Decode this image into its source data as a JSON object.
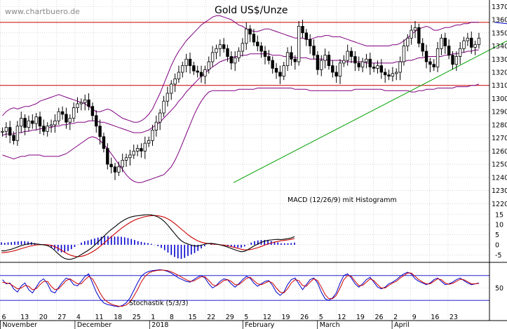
{
  "watermark": "www.chartbuero.de",
  "chart_data": {
    "type": "candlestick",
    "title": "Gold US$/Unze",
    "price_axis": {
      "ylim": [
        1210,
        1375
      ],
      "ticks": [
        1220,
        1230,
        1240,
        1250,
        1260,
        1270,
        1280,
        1290,
        1300,
        1310,
        1320,
        1330,
        1340,
        1350,
        1360,
        1370
      ]
    },
    "x_ticks": [
      "6",
      "13",
      "20",
      "27",
      "4",
      "11",
      "18",
      "25",
      "1",
      "8",
      "15",
      "22",
      "29",
      "5",
      "12",
      "19",
      "26",
      "5",
      "12",
      "19",
      "26",
      "2",
      "9",
      "16",
      "23"
    ],
    "month_labels": [
      {
        "label": "November",
        "tick": 0
      },
      {
        "label": "December",
        "tick": 4
      },
      {
        "label": "2018",
        "tick": 8
      },
      {
        "label": "February",
        "tick": 13
      },
      {
        "label": "March",
        "tick": 17
      },
      {
        "label": "April",
        "tick": 21
      }
    ],
    "horizontal_levels": [
      1358,
      1310
    ],
    "trendlines": [
      {
        "color": "#0000cc",
        "from": [
          1358.0,
          26.5
        ],
        "to": [
          1326.0,
          47.5
        ]
      },
      {
        "color": "#0000cc",
        "from": [
          1331.0,
          27.5
        ],
        "to": [
          1292.0,
          56.5
        ]
      },
      {
        "color": "#00a000",
        "from": [
          1236.0,
          12.5
        ],
        "to": [
          1350.0,
          28.0
        ]
      }
    ],
    "close": [
      1275,
      1278,
      1272,
      1268,
      1279,
      1285,
      1278,
      1283,
      1281,
      1286,
      1279,
      1275,
      1279,
      1280,
      1283,
      1290,
      1288,
      1282,
      1285,
      1293,
      1296,
      1297,
      1299,
      1294,
      1287,
      1279,
      1271,
      1262,
      1250,
      1248,
      1244,
      1248,
      1253,
      1255,
      1257,
      1260,
      1262,
      1260,
      1266,
      1268,
      1276,
      1282,
      1289,
      1298,
      1304,
      1311,
      1315,
      1320,
      1325,
      1330,
      1325,
      1321,
      1320,
      1317,
      1322,
      1328,
      1335,
      1338,
      1341,
      1338,
      1332,
      1327,
      1331,
      1336,
      1342,
      1353,
      1349,
      1343,
      1340,
      1336,
      1332,
      1329,
      1323,
      1320,
      1317,
      1325,
      1335,
      1330,
      1328,
      1355,
      1350,
      1345,
      1340,
      1333,
      1322,
      1329,
      1333,
      1325,
      1320,
      1317,
      1327,
      1329,
      1336,
      1332,
      1327,
      1324,
      1328,
      1330,
      1324,
      1323,
      1325,
      1320,
      1318,
      1317,
      1319,
      1320,
      1328,
      1340,
      1346,
      1352,
      1354,
      1342,
      1336,
      1328,
      1326,
      1324,
      1338,
      1346,
      1340,
      1333,
      1326,
      1332,
      1338,
      1344,
      1346,
      1339,
      1341,
      1346
    ],
    "open": [
      1275,
      1275,
      1278,
      1272,
      1268,
      1279,
      1285,
      1278,
      1283,
      1281,
      1286,
      1279,
      1275,
      1279,
      1280,
      1283,
      1290,
      1288,
      1282,
      1285,
      1293,
      1296,
      1297,
      1299,
      1294,
      1287,
      1279,
      1271,
      1262,
      1250,
      1248,
      1244,
      1248,
      1253,
      1255,
      1257,
      1260,
      1262,
      1260,
      1266,
      1268,
      1276,
      1282,
      1289,
      1298,
      1304,
      1311,
      1315,
      1320,
      1325,
      1330,
      1325,
      1321,
      1320,
      1317,
      1322,
      1328,
      1335,
      1338,
      1341,
      1338,
      1332,
      1327,
      1331,
      1336,
      1342,
      1353,
      1349,
      1343,
      1340,
      1336,
      1332,
      1329,
      1323,
      1320,
      1317,
      1325,
      1335,
      1330,
      1328,
      1355,
      1350,
      1345,
      1340,
      1333,
      1322,
      1329,
      1333,
      1325,
      1320,
      1317,
      1327,
      1329,
      1336,
      1332,
      1327,
      1324,
      1328,
      1330,
      1324,
      1323,
      1325,
      1320,
      1318,
      1317,
      1319,
      1320,
      1328,
      1340,
      1346,
      1352,
      1354,
      1342,
      1336,
      1328,
      1326,
      1324,
      1338,
      1346,
      1340,
      1333,
      1326,
      1332,
      1338,
      1344,
      1346,
      1339,
      1341
    ],
    "bollinger": {
      "upper": [
        1287,
        1290,
        1292,
        1293,
        1292,
        1293,
        1294,
        1294,
        1295,
        1296,
        1298,
        1299,
        1300,
        1301,
        1302,
        1303,
        1302,
        1301,
        1300,
        1299,
        1298,
        1297,
        1296,
        1294,
        1292,
        1290,
        1290,
        1291,
        1292,
        1291,
        1289,
        1287,
        1285,
        1284,
        1283,
        1282,
        1282,
        1283,
        1285,
        1288,
        1292,
        1298,
        1304,
        1311,
        1318,
        1325,
        1331,
        1336,
        1340,
        1344,
        1347,
        1350,
        1353,
        1356,
        1358,
        1360,
        1362,
        1363,
        1363,
        1362,
        1361,
        1360,
        1358,
        1356,
        1355,
        1353,
        1352,
        1351,
        1351,
        1352,
        1353,
        1353,
        1352,
        1351,
        1350,
        1349,
        1348,
        1347,
        1346,
        1346,
        1346,
        1345,
        1345,
        1346,
        1347,
        1347,
        1348,
        1348,
        1347,
        1347,
        1347,
        1346,
        1345,
        1344,
        1343,
        1342,
        1341,
        1340,
        1340,
        1340,
        1340,
        1340,
        1340,
        1340,
        1341,
        1341,
        1342,
        1344,
        1346,
        1349,
        1351,
        1353,
        1354,
        1355,
        1354,
        1352,
        1352,
        1353,
        1354,
        1354,
        1355,
        1356,
        1356,
        1357,
        1357,
        1358,
        1358,
        1358
      ],
      "middle": [
        1272,
        1273,
        1273,
        1273,
        1274,
        1274,
        1275,
        1275,
        1276,
        1276,
        1277,
        1277,
        1278,
        1278,
        1279,
        1279,
        1280,
        1280,
        1281,
        1281,
        1282,
        1282,
        1282,
        1283,
        1283,
        1283,
        1282,
        1282,
        1281,
        1280,
        1279,
        1278,
        1277,
        1276,
        1275,
        1274,
        1274,
        1274,
        1275,
        1276,
        1278,
        1280,
        1282,
        1285,
        1288,
        1291,
        1294,
        1298,
        1301,
        1305,
        1308,
        1311,
        1314,
        1317,
        1319,
        1322,
        1324,
        1326,
        1328,
        1329,
        1330,
        1331,
        1332,
        1332,
        1333,
        1333,
        1334,
        1334,
        1334,
        1334,
        1334,
        1334,
        1333,
        1333,
        1333,
        1332,
        1332,
        1332,
        1331,
        1331,
        1331,
        1331,
        1330,
        1330,
        1330,
        1330,
        1330,
        1329,
        1329,
        1329,
        1329,
        1328,
        1328,
        1328,
        1328,
        1328,
        1328,
        1327,
        1327,
        1327,
        1327,
        1327,
        1327,
        1327,
        1327,
        1328,
        1328,
        1328,
        1329,
        1329,
        1330,
        1331,
        1331,
        1332,
        1332,
        1332,
        1332,
        1332,
        1333,
        1333,
        1334,
        1334,
        1335,
        1335,
        1336,
        1336,
        1337,
        1337
      ],
      "lower": [
        1257,
        1256,
        1255,
        1254,
        1255,
        1256,
        1256,
        1257,
        1257,
        1257,
        1257,
        1256,
        1256,
        1256,
        1256,
        1256,
        1257,
        1258,
        1260,
        1262,
        1264,
        1266,
        1268,
        1270,
        1271,
        1270,
        1268,
        1265,
        1262,
        1258,
        1254,
        1250,
        1246,
        1242,
        1239,
        1237,
        1236,
        1236,
        1237,
        1238,
        1239,
        1240,
        1241,
        1242,
        1245,
        1248,
        1253,
        1259,
        1266,
        1273,
        1280,
        1287,
        1293,
        1298,
        1302,
        1305,
        1306,
        1306,
        1306,
        1306,
        1306,
        1306,
        1306,
        1307,
        1307,
        1307,
        1307,
        1307,
        1308,
        1308,
        1308,
        1308,
        1308,
        1308,
        1308,
        1308,
        1308,
        1308,
        1307,
        1307,
        1307,
        1307,
        1306,
        1306,
        1306,
        1306,
        1306,
        1306,
        1306,
        1306,
        1306,
        1306,
        1306,
        1306,
        1307,
        1307,
        1307,
        1307,
        1307,
        1307,
        1307,
        1307,
        1306,
        1306,
        1306,
        1306,
        1306,
        1306,
        1306,
        1305,
        1305,
        1306,
        1306,
        1307,
        1307,
        1307,
        1308,
        1308,
        1308,
        1308,
        1308,
        1309,
        1309,
        1309,
        1309,
        1310,
        1310,
        1311
      ]
    },
    "macd": {
      "label": "MACD (12/26/9) mit Histogramm",
      "ticks": [
        15,
        10,
        5,
        0,
        -5
      ],
      "ylim": [
        -8,
        17
      ],
      "macd": [
        -3,
        -3,
        -2.6,
        -2.2,
        -1.6,
        -1,
        -0.4,
        0.1,
        0.4,
        0.6,
        0.5,
        0.3,
        0.1,
        -0.1,
        -0.5,
        -1.4,
        -2.8,
        -4.4,
        -5.8,
        -6.8,
        -7.2,
        -7.1,
        -6.6,
        -5.8,
        -4.8,
        -3.8,
        -2.8,
        -1.6,
        -0.2,
        1.4,
        3,
        4.6,
        6.2,
        7.6,
        8.8,
        10.2,
        11.4,
        12.4,
        13.2,
        13.8,
        14.2,
        14.4,
        14.6,
        14.8,
        14.9,
        14.8,
        14.4,
        13.8,
        12.8,
        11.4,
        9.6,
        7.6,
        5.6,
        3.6,
        2,
        1,
        0.4,
        -0.2,
        -0.6,
        -0.6,
        -0.2,
        0.3,
        0.6,
        0.7,
        0.5,
        0.2,
        -0.2,
        -0.6,
        -1.2,
        -1.8,
        -2.4,
        -3,
        -3.4,
        -3.2,
        -2.4,
        -1.4,
        -0.4,
        0.4,
        1.2,
        1.8,
        2.2,
        2.4,
        2.6,
        2.7,
        2.6,
        2.8,
        3,
        3.4,
        4
      ],
      "signal": [
        -4,
        -3.8,
        -3.6,
        -3.3,
        -2.9,
        -2.4,
        -1.9,
        -1.4,
        -0.9,
        -0.5,
        -0.2,
        0,
        0.1,
        0.1,
        0,
        -0.3,
        -0.9,
        -1.7,
        -2.7,
        -3.7,
        -4.6,
        -5.3,
        -5.7,
        -5.9,
        -5.7,
        -5.3,
        -4.6,
        -3.8,
        -2.8,
        -1.6,
        -0.3,
        1.1,
        2.6,
        4,
        5.4,
        6.8,
        8.1,
        9.3,
        10.4,
        11.4,
        12.2,
        12.9,
        13.4,
        13.9,
        14.2,
        14.4,
        14.5,
        14.4,
        14.1,
        13.6,
        12.8,
        11.8,
        10.6,
        9.2,
        7.8,
        6.4,
        5,
        3.8,
        2.8,
        1.9,
        1.3,
        0.9,
        0.6,
        0.4,
        0.3,
        0.2,
        0,
        -0.2,
        -0.5,
        -0.9,
        -1.3,
        -1.8,
        -2.2,
        -2.5,
        -2.5,
        -2.3,
        -1.9,
        -1.4,
        -0.8,
        -0.2,
        0.4,
        0.9,
        1.3,
        1.7,
        2,
        2.2,
        2.4,
        2.7,
        3.1
      ]
    },
    "stochastic": {
      "label": "Stochastik (5/3/3)",
      "ticks": [
        50
      ],
      "levels": [
        80,
        20
      ],
      "k": [
        70,
        60,
        62,
        48,
        40,
        55,
        62,
        46,
        38,
        52,
        66,
        72,
        60,
        42,
        38,
        52,
        64,
        74,
        70,
        58,
        55,
        66,
        78,
        84,
        62,
        40,
        24,
        14,
        10,
        8,
        6,
        5,
        8,
        14,
        26,
        44,
        62,
        78,
        86,
        90,
        92,
        93,
        94,
        93,
        90,
        86,
        80,
        74,
        70,
        66,
        64,
        70,
        76,
        80,
        74,
        60,
        50,
        56,
        66,
        72,
        70,
        60,
        52,
        60,
        70,
        78,
        74,
        62,
        54,
        60,
        66,
        68,
        56,
        40,
        32,
        40,
        58,
        70,
        74,
        60,
        46,
        58,
        70,
        74,
        62,
        40,
        24,
        20,
        26,
        38,
        62,
        80,
        84,
        74,
        60,
        52,
        60,
        70,
        76,
        64,
        52,
        48,
        52,
        60,
        64,
        70,
        78,
        84,
        88,
        84,
        72,
        66,
        62,
        58,
        62,
        70,
        74,
        66,
        58,
        60,
        64,
        70,
        74,
        68,
        62,
        58,
        60,
        62
      ],
      "d": [
        64,
        62,
        60,
        54,
        48,
        50,
        56,
        54,
        46,
        48,
        58,
        66,
        66,
        54,
        46,
        48,
        58,
        68,
        72,
        66,
        60,
        60,
        70,
        78,
        72,
        56,
        38,
        24,
        16,
        11,
        8,
        6,
        6,
        9,
        16,
        30,
        46,
        64,
        78,
        86,
        90,
        92,
        93,
        93,
        92,
        89,
        85,
        80,
        75,
        70,
        66,
        67,
        72,
        77,
        77,
        68,
        58,
        55,
        61,
        68,
        70,
        66,
        58,
        58,
        65,
        73,
        76,
        68,
        60,
        58,
        62,
        66,
        62,
        50,
        40,
        38,
        48,
        62,
        70,
        68,
        56,
        54,
        64,
        72,
        68,
        52,
        34,
        24,
        24,
        32,
        50,
        70,
        80,
        78,
        66,
        56,
        56,
        64,
        72,
        68,
        58,
        50,
        50,
        56,
        62,
        66,
        74,
        80,
        86,
        86,
        78,
        70,
        64,
        60,
        60,
        66,
        72,
        70,
        62,
        59,
        61,
        66,
        71,
        70,
        65,
        60,
        60,
        61
      ]
    },
    "series": [
      {
        "name": "Kurs",
        "color": "#000000"
      },
      {
        "name": "Bollinger",
        "color": "#800080"
      },
      {
        "name": "MACD",
        "color": "#000000"
      },
      {
        "name": "Signal",
        "color": "#cc0000"
      },
      {
        "name": "%K",
        "color": "#0000cc"
      },
      {
        "name": "%D",
        "color": "#cc0000"
      }
    ],
    "colors": {
      "level_line": "#cc0000",
      "bollinger": "#800080",
      "histogram": "#0000cc",
      "grid": "#bfbfbf"
    },
    "grid": true
  }
}
